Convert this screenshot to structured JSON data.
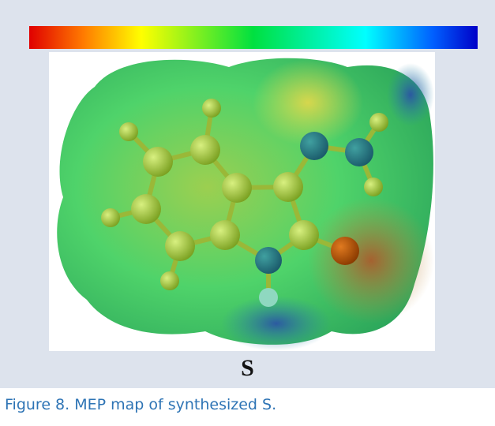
{
  "figure": {
    "label": "S",
    "caption": "Figure 8. MEP map of synthesized S."
  }
}
